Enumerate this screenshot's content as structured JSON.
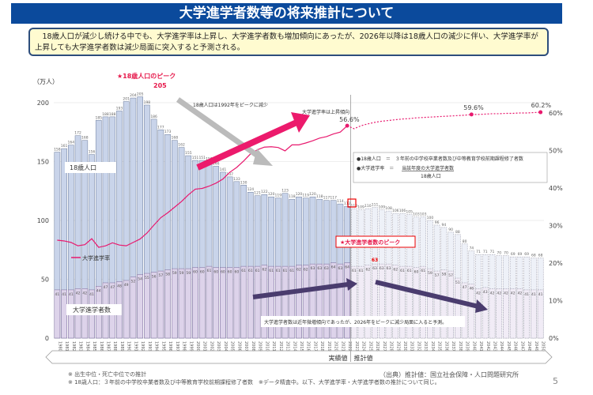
{
  "title": "大学進学者数等の将来推計について",
  "summary": "　18歳人口が減少し続ける中でも、大学進学率は上昇し、大学進学者数も増加傾向にあったが、2026年以降は18歳人口の減少に伴い、大学進学率が上昇しても大学進学者数は減少局面に突入すると予測される。",
  "chart_data": {
    "type": "bar+line",
    "ylabel": "（万人）",
    "ylim": [
      0,
      200
    ],
    "yticks": [
      "0",
      "50",
      "100",
      "150",
      "200"
    ],
    "y2lim": [
      0,
      60
    ],
    "y2ticks": [
      "0%",
      "10%",
      "20%",
      "30%",
      "40%",
      "50%",
      "60%"
    ],
    "grid": true,
    "years": [
      1980,
      1981,
      1982,
      1983,
      1984,
      1985,
      1986,
      1987,
      1988,
      1989,
      1990,
      1991,
      1992,
      1993,
      1994,
      1995,
      1996,
      1997,
      1998,
      1999,
      2000,
      2001,
      2002,
      2003,
      2004,
      2005,
      2006,
      2007,
      2008,
      2009,
      2010,
      2011,
      2012,
      2013,
      2014,
      2015,
      2016,
      2017,
      2018,
      2019,
      2020,
      2021,
      2022,
      2023,
      2024,
      2025,
      2026,
      2027,
      2028,
      2029,
      2030,
      2031,
      2032,
      2033,
      2034,
      2035,
      2036,
      2037,
      2038,
      2039,
      2040,
      2041,
      2042,
      2043,
      2044,
      2045,
      2046,
      2047,
      2048,
      2049,
      2050
    ],
    "actual_last_year": 2022,
    "series": [
      {
        "name": "18歳人口",
        "type": "bar",
        "color": "#c9d4ea",
        "values": [
          158,
          161,
          164,
          172,
          168,
          156,
          185,
          188,
          188,
          193,
          201,
          204,
          205,
          198,
          186,
          177,
          173,
          168,
          162,
          155,
          151,
          151,
          150,
          146,
          141,
          137,
          133,
          130,
          124,
          121,
          122,
          120,
          119,
          123,
          118,
          120,
          119,
          120,
          118,
          117,
          117,
          114,
          112,
          110,
          109,
          110,
          111,
          109,
          108,
          106,
          106,
          105,
          103,
          103,
          100,
          96,
          94,
          90,
          88,
          80,
          74,
          71,
          71,
          71,
          70,
          70,
          69,
          69,
          69,
          68,
          68
        ]
      },
      {
        "name": "大学進学者数",
        "type": "bar",
        "color": "#ddd3ea",
        "values": [
          41,
          41,
          41,
          42,
          42,
          41,
          44,
          47,
          47,
          48,
          49,
          52,
          54,
          55,
          56,
          57,
          58,
          59,
          59,
          59,
          60,
          60,
          61,
          60,
          60,
          60,
          60,
          61,
          61,
          61,
          62,
          61,
          61,
          61,
          61,
          62,
          62,
          63,
          63,
          63,
          64,
          63,
          64,
          61,
          61,
          62,
          63,
          63,
          63,
          62,
          61,
          61,
          60,
          61,
          59,
          57,
          58,
          57,
          51,
          47,
          46,
          42,
          43,
          42,
          42,
          42,
          42,
          42,
          41,
          41,
          41
        ]
      },
      {
        "name": "大学進学率",
        "type": "line",
        "color": "#e8196e",
        "axis": "right",
        "values": [
          26.1,
          25.9,
          25.5,
          24.6,
          24.9,
          26.5,
          24.2,
          24.6,
          25.4,
          24.8,
          24.6,
          25.5,
          26.4,
          28.0,
          30.1,
          32.1,
          33.4,
          34.9,
          36.4,
          38.2,
          39.7,
          39.9,
          40.5,
          41.3,
          42.4,
          44.2,
          45.5,
          47.2,
          49.1,
          50.2,
          50.9,
          51.0,
          50.8,
          49.9,
          51.5,
          51.5,
          52.0,
          52.6,
          53.3,
          53.7,
          54.4,
          54.9,
          56.6,
          55.8,
          56.6,
          57.1,
          57.5,
          57.8,
          58.0,
          58.2,
          58.4,
          58.5,
          58.7,
          58.8,
          58.9,
          59.0,
          59.1,
          59.2,
          59.3,
          59.4,
          59.6,
          59.6,
          59.7,
          59.8,
          59.8,
          59.9,
          59.9,
          60.0,
          60.0,
          60.1,
          60.2
        ]
      }
    ],
    "annotations": {
      "pop_peak_label": "★18歳人口のピーク",
      "pop_peak_value": "205",
      "pop_decline": "18歳人口は1992年をピークに減少",
      "rate_rise": "大学進学率は上昇傾向",
      "rate_2022": "56.6%",
      "rate_2040": "59.6%",
      "rate_2050": "60.2%",
      "student_peak_label": "★大学進学者数のピーク",
      "student_peak_value": "63",
      "student_decline": "大学進学者数は近年微増傾向であったが、2026年をピークに減少局面に入ると予測。",
      "legend_pop": "18歳人口",
      "legend_rate": "大学進学率",
      "legend_students": "大学進学者数",
      "def_pop": "●18歳人口　＝　３年前の中学校卒業者数及び中等教育学校前期課程修了者数",
      "def_rate_lhs": "●大学進学率　＝",
      "def_rate_num": "当該年度の大学進学者数",
      "def_rate_den": "18歳人口",
      "actual": "実績値",
      "projected": "推計値"
    }
  },
  "notes": {
    "note1": "※ 出生中位・死亡中位での推計",
    "note2": "※ 18歳人口：３年前の中学校卒業者数及び中等教育学校前期課程修了者数　※データ精査中。以下、大学進学率・大学進学者数の推計について同じ。",
    "source": "（出典）推計値：国立社会保障・人口問題研究所",
    "page": "5"
  }
}
